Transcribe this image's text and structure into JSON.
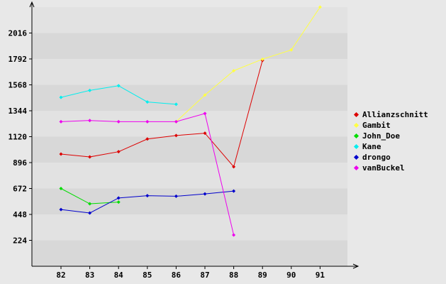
{
  "chart_data": {
    "type": "line",
    "title": "",
    "xlabel": "",
    "ylabel": "",
    "x": [
      "82",
      "83",
      "84",
      "85",
      "86",
      "87",
      "88",
      "89",
      "90",
      "91"
    ],
    "yticks": [
      224,
      448,
      672,
      896,
      1120,
      1344,
      1568,
      1792,
      2016
    ],
    "ylim": [
      0,
      2240
    ],
    "grid": "horizontal alternating bands",
    "legend_position": "right",
    "series": [
      {
        "name": "Allianzschnitt",
        "color": "#dd0000",
        "points": [
          [
            "82",
            970
          ],
          [
            "83",
            945
          ],
          [
            "84",
            990
          ],
          [
            "85",
            1100
          ],
          [
            "86",
            1130
          ],
          [
            "87",
            1150
          ],
          [
            "88",
            860
          ],
          [
            "89",
            1780
          ]
        ]
      },
      {
        "name": "Gambit",
        "color": "#ffff44",
        "points": [
          [
            "86",
            1250
          ],
          [
            "87",
            1480
          ],
          [
            "88",
            1690
          ],
          [
            "89",
            1790
          ],
          [
            "90",
            1870
          ],
          [
            "91",
            2240
          ]
        ]
      },
      {
        "name": "John_Doe",
        "color": "#00dd00",
        "points": [
          [
            "82",
            672
          ],
          [
            "83",
            540
          ],
          [
            "84",
            555
          ]
        ]
      },
      {
        "name": "Kane",
        "color": "#00eeee",
        "points": [
          [
            "82",
            1460
          ],
          [
            "83",
            1520
          ],
          [
            "84",
            1560
          ],
          [
            "85",
            1420
          ],
          [
            "86",
            1400
          ]
        ]
      },
      {
        "name": "drongo",
        "color": "#0000cc",
        "points": [
          [
            "82",
            490
          ],
          [
            "83",
            460
          ],
          [
            "84",
            590
          ],
          [
            "85",
            610
          ],
          [
            "86",
            605
          ],
          [
            "87",
            625
          ],
          [
            "88",
            650
          ]
        ]
      },
      {
        "name": "vanBuckel",
        "color": "#ee00ee",
        "points": [
          [
            "82",
            1250
          ],
          [
            "83",
            1260
          ],
          [
            "84",
            1250
          ],
          [
            "85",
            1250
          ],
          [
            "86",
            1250
          ],
          [
            "87",
            1320
          ],
          [
            "88",
            270
          ]
        ]
      }
    ]
  }
}
